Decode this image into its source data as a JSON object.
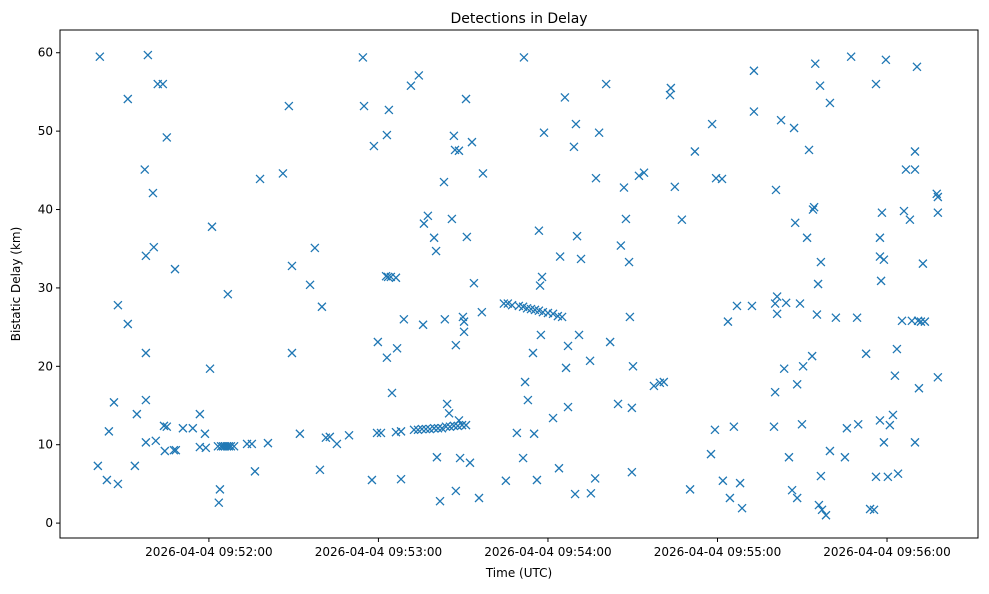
{
  "chart_data": {
    "type": "scatter",
    "title": "Detections in Delay",
    "xlabel": "Time (UTC)",
    "ylabel": "Bistatic Delay (km)",
    "x_unit": "seconds after 2026-04-04 09:51:00",
    "xlim": [
      7.3,
      332.2
    ],
    "ylim": [
      -1.9,
      62.9
    ],
    "grid": false,
    "marker": "x",
    "color": "#1f77b4",
    "x_ticks": [
      {
        "value": 60,
        "label": "2026-04-04 09:52:00"
      },
      {
        "value": 120,
        "label": "2026-04-04 09:53:00"
      },
      {
        "value": 180,
        "label": "2026-04-04 09:54:00"
      },
      {
        "value": 240,
        "label": "2026-04-04 09:55:00"
      },
      {
        "value": 300,
        "label": "2026-04-04 09:56:00"
      }
    ],
    "y_ticks": [
      {
        "value": 0,
        "label": "0"
      },
      {
        "value": 10,
        "label": "10"
      },
      {
        "value": 20,
        "label": "20"
      },
      {
        "value": 30,
        "label": "30"
      },
      {
        "value": 40,
        "label": "40"
      },
      {
        "value": 50,
        "label": "50"
      },
      {
        "value": 60,
        "label": "60"
      }
    ],
    "points": [
      [
        21.4,
        59.5
      ],
      [
        20.7,
        7.3
      ],
      [
        23.9,
        5.5
      ],
      [
        24.6,
        11.7
      ],
      [
        26.4,
        15.4
      ],
      [
        27.8,
        5.0
      ],
      [
        27.8,
        27.8
      ],
      [
        31.3,
        54.1
      ],
      [
        31.3,
        25.4
      ],
      [
        33.8,
        7.3
      ],
      [
        34.5,
        13.9
      ],
      [
        37.3,
        45.1
      ],
      [
        37.7,
        34.1
      ],
      [
        37.7,
        21.7
      ],
      [
        37.7,
        15.7
      ],
      [
        37.7,
        10.3
      ],
      [
        38.4,
        59.7
      ],
      [
        40.2,
        42.1
      ],
      [
        40.5,
        35.2
      ],
      [
        41.2,
        10.5
      ],
      [
        41.9,
        56.0
      ],
      [
        43.7,
        56.0
      ],
      [
        44.1,
        12.4
      ],
      [
        44.4,
        9.2
      ],
      [
        45.1,
        12.3
      ],
      [
        45.1,
        49.2
      ],
      [
        47.6,
        9.3
      ],
      [
        48.3,
        9.3
      ],
      [
        48.0,
        32.4
      ],
      [
        50.8,
        12.1
      ],
      [
        54.3,
        12.1
      ],
      [
        56.8,
        13.9
      ],
      [
        56.8,
        9.7
      ],
      [
        58.6,
        11.4
      ],
      [
        58.9,
        9.6
      ],
      [
        60.4,
        19.7
      ],
      [
        61.1,
        37.8
      ],
      [
        63.9,
        4.3
      ],
      [
        63.5,
        2.6
      ],
      [
        63.2,
        9.8
      ],
      [
        64.3,
        9.8
      ],
      [
        65.0,
        9.8
      ],
      [
        65.7,
        9.8
      ],
      [
        66.4,
        9.8
      ],
      [
        67.1,
        9.8
      ],
      [
        67.8,
        9.8
      ],
      [
        68.9,
        9.8
      ],
      [
        66.7,
        29.2
      ],
      [
        73.5,
        10.1
      ],
      [
        75.2,
        10.1
      ],
      [
        76.3,
        6.6
      ],
      [
        78.1,
        43.9
      ],
      [
        80.9,
        10.2
      ],
      [
        86.2,
        44.6
      ],
      [
        88.3,
        53.2
      ],
      [
        89.4,
        32.8
      ],
      [
        89.4,
        21.7
      ],
      [
        92.2,
        11.4
      ],
      [
        95.8,
        30.4
      ],
      [
        97.5,
        35.1
      ],
      [
        99.3,
        6.8
      ],
      [
        100.0,
        27.6
      ],
      [
        101.4,
        10.9
      ],
      [
        102.8,
        11.0
      ],
      [
        105.3,
        10.1
      ],
      [
        109.6,
        11.2
      ],
      [
        114.5,
        59.4
      ],
      [
        114.9,
        53.2
      ],
      [
        117.7,
        5.5
      ],
      [
        118.4,
        48.1
      ],
      [
        119.5,
        11.5
      ],
      [
        120.9,
        11.5
      ],
      [
        119.8,
        23.1
      ],
      [
        122.7,
        31.5
      ],
      [
        123.4,
        31.4
      ],
      [
        124.4,
        31.4
      ],
      [
        126.2,
        31.3
      ],
      [
        123.0,
        21.1
      ],
      [
        123.0,
        49.5
      ],
      [
        123.7,
        52.7
      ],
      [
        124.8,
        16.6
      ],
      [
        126.2,
        11.6
      ],
      [
        126.6,
        22.3
      ],
      [
        128.0,
        11.7
      ],
      [
        128.0,
        5.6
      ],
      [
        129.0,
        26.0
      ],
      [
        131.5,
        55.8
      ],
      [
        132.6,
        11.9
      ],
      [
        134.0,
        11.9
      ],
      [
        135.4,
        12.0
      ],
      [
        136.8,
        12.0
      ],
      [
        138.2,
        12.0
      ],
      [
        139.7,
        12.1
      ],
      [
        141.1,
        12.1
      ],
      [
        142.5,
        12.1
      ],
      [
        143.9,
        12.3
      ],
      [
        145.3,
        12.3
      ],
      [
        146.7,
        12.4
      ],
      [
        148.1,
        12.4
      ],
      [
        149.6,
        12.5
      ],
      [
        151.0,
        12.5
      ],
      [
        134.3,
        57.1
      ],
      [
        135.8,
        25.3
      ],
      [
        136.1,
        38.2
      ],
      [
        137.5,
        39.2
      ],
      [
        139.7,
        36.4
      ],
      [
        140.4,
        34.7
      ],
      [
        140.7,
        8.4
      ],
      [
        141.8,
        2.8
      ],
      [
        143.2,
        43.5
      ],
      [
        143.5,
        26.0
      ],
      [
        144.3,
        15.2
      ],
      [
        145.0,
        14.0
      ],
      [
        146.0,
        38.8
      ],
      [
        146.7,
        49.4
      ],
      [
        147.1,
        47.6
      ],
      [
        147.4,
        22.7
      ],
      [
        147.4,
        4.1
      ],
      [
        148.5,
        47.5
      ],
      [
        148.5,
        13.1
      ],
      [
        148.9,
        8.3
      ],
      [
        149.9,
        26.3
      ],
      [
        150.3,
        24.4
      ],
      [
        150.3,
        25.7
      ],
      [
        151.0,
        54.1
      ],
      [
        151.3,
        36.5
      ],
      [
        152.4,
        7.7
      ],
      [
        153.1,
        48.6
      ],
      [
        153.8,
        30.6
      ],
      [
        155.6,
        3.2
      ],
      [
        156.6,
        26.9
      ],
      [
        157.0,
        44.6
      ],
      [
        165.1,
        5.4
      ],
      [
        164.4,
        28.0
      ],
      [
        165.8,
        28.0
      ],
      [
        167.3,
        27.8
      ],
      [
        169.7,
        27.7
      ],
      [
        171.2,
        27.6
      ],
      [
        172.6,
        27.4
      ],
      [
        174.0,
        27.3
      ],
      [
        175.4,
        27.2
      ],
      [
        176.8,
        27.1
      ],
      [
        178.2,
        26.9
      ],
      [
        180.0,
        26.8
      ],
      [
        181.8,
        26.7
      ],
      [
        183.5,
        26.4
      ],
      [
        185.0,
        26.3
      ],
      [
        169.0,
        11.5
      ],
      [
        171.5,
        59.4
      ],
      [
        171.2,
        8.3
      ],
      [
        171.9,
        18.0
      ],
      [
        172.9,
        15.7
      ],
      [
        174.7,
        21.7
      ],
      [
        175.1,
        11.4
      ],
      [
        176.1,
        5.5
      ],
      [
        176.8,
        37.3
      ],
      [
        177.2,
        30.3
      ],
      [
        177.9,
        31.4
      ],
      [
        177.5,
        24.0
      ],
      [
        178.6,
        49.8
      ],
      [
        181.8,
        13.4
      ],
      [
        183.9,
        7.0
      ],
      [
        184.3,
        34.0
      ],
      [
        186.0,
        54.3
      ],
      [
        186.4,
        19.8
      ],
      [
        187.1,
        22.6
      ],
      [
        187.1,
        14.8
      ],
      [
        189.2,
        48.0
      ],
      [
        189.6,
        3.7
      ],
      [
        189.9,
        50.9
      ],
      [
        190.3,
        36.6
      ],
      [
        191.0,
        24.0
      ],
      [
        191.7,
        33.7
      ],
      [
        194.9,
        20.7
      ],
      [
        195.2,
        3.8
      ],
      [
        196.7,
        5.7
      ],
      [
        197.0,
        44.0
      ],
      [
        198.1,
        49.8
      ],
      [
        200.6,
        56.0
      ],
      [
        202.0,
        23.1
      ],
      [
        204.8,
        15.2
      ],
      [
        205.8,
        35.4
      ],
      [
        206.9,
        42.8
      ],
      [
        207.6,
        38.8
      ],
      [
        208.7,
        33.3
      ],
      [
        209.0,
        26.3
      ],
      [
        209.7,
        14.7
      ],
      [
        210.1,
        20.0
      ],
      [
        209.7,
        6.5
      ],
      [
        212.2,
        44.3
      ],
      [
        214.0,
        44.7
      ],
      [
        217.5,
        17.5
      ],
      [
        219.6,
        17.9
      ],
      [
        221.0,
        18.0
      ],
      [
        223.2,
        54.6
      ],
      [
        223.5,
        55.5
      ],
      [
        224.9,
        42.9
      ],
      [
        227.4,
        38.7
      ],
      [
        230.3,
        4.3
      ],
      [
        232.0,
        47.4
      ],
      [
        237.7,
        8.8
      ],
      [
        238.1,
        50.9
      ],
      [
        239.1,
        11.9
      ],
      [
        239.5,
        44.0
      ],
      [
        241.6,
        43.9
      ],
      [
        241.9,
        5.4
      ],
      [
        243.7,
        25.7
      ],
      [
        244.4,
        3.2
      ],
      [
        245.8,
        12.3
      ],
      [
        246.9,
        27.7
      ],
      [
        248.7,
        1.9
      ],
      [
        248.0,
        5.1
      ],
      [
        252.2,
        27.7
      ],
      [
        252.9,
        57.7
      ],
      [
        252.9,
        52.5
      ],
      [
        260.4,
        28.0
      ],
      [
        260.7,
        42.5
      ],
      [
        260.0,
        12.3
      ],
      [
        260.4,
        16.7
      ],
      [
        261.1,
        28.9
      ],
      [
        261.1,
        26.7
      ],
      [
        262.5,
        51.4
      ],
      [
        263.6,
        19.7
      ],
      [
        264.3,
        28.1
      ],
      [
        265.3,
        8.4
      ],
      [
        266.4,
        4.2
      ],
      [
        267.1,
        50.4
      ],
      [
        267.5,
        38.3
      ],
      [
        268.2,
        17.7
      ],
      [
        268.2,
        3.2
      ],
      [
        269.2,
        28.0
      ],
      [
        269.9,
        12.6
      ],
      [
        270.3,
        20.0
      ],
      [
        271.7,
        36.4
      ],
      [
        272.4,
        47.6
      ],
      [
        273.5,
        21.3
      ],
      [
        273.8,
        40.0
      ],
      [
        274.2,
        40.3
      ],
      [
        274.6,
        58.6
      ],
      [
        275.2,
        26.6
      ],
      [
        275.6,
        30.5
      ],
      [
        275.9,
        2.3
      ],
      [
        276.3,
        55.8
      ],
      [
        276.6,
        33.3
      ],
      [
        276.6,
        6.0
      ],
      [
        277.0,
        1.7
      ],
      [
        278.4,
        1.0
      ],
      [
        279.8,
        53.6
      ],
      [
        279.8,
        9.2
      ],
      [
        281.9,
        26.2
      ],
      [
        285.1,
        8.4
      ],
      [
        285.8,
        12.1
      ],
      [
        287.3,
        59.5
      ],
      [
        289.4,
        26.2
      ],
      [
        289.8,
        12.6
      ],
      [
        292.6,
        21.6
      ],
      [
        294.0,
        1.8
      ],
      [
        295.4,
        1.7
      ],
      [
        296.1,
        56.0
      ],
      [
        296.1,
        5.9
      ],
      [
        297.5,
        36.4
      ],
      [
        297.5,
        13.1
      ],
      [
        297.5,
        34.0
      ],
      [
        297.9,
        30.9
      ],
      [
        298.2,
        39.6
      ],
      [
        298.9,
        33.6
      ],
      [
        298.9,
        10.3
      ],
      [
        299.6,
        59.1
      ],
      [
        300.3,
        5.9
      ],
      [
        301.0,
        12.5
      ],
      [
        302.1,
        13.8
      ],
      [
        302.8,
        18.8
      ],
      [
        303.5,
        22.2
      ],
      [
        303.9,
        6.3
      ],
      [
        305.3,
        25.8
      ],
      [
        306.0,
        39.8
      ],
      [
        306.7,
        45.1
      ],
      [
        308.1,
        38.7
      ],
      [
        308.8,
        25.8
      ],
      [
        309.9,
        47.4
      ],
      [
        309.9,
        45.1
      ],
      [
        309.9,
        10.3
      ],
      [
        310.6,
        58.2
      ],
      [
        311.0,
        25.8
      ],
      [
        311.3,
        17.2
      ],
      [
        312.0,
        25.7
      ],
      [
        312.7,
        33.1
      ],
      [
        313.4,
        25.7
      ],
      [
        317.6,
        42.0
      ],
      [
        318.0,
        41.6
      ],
      [
        318.0,
        39.6
      ],
      [
        318.0,
        18.6
      ]
    ]
  }
}
